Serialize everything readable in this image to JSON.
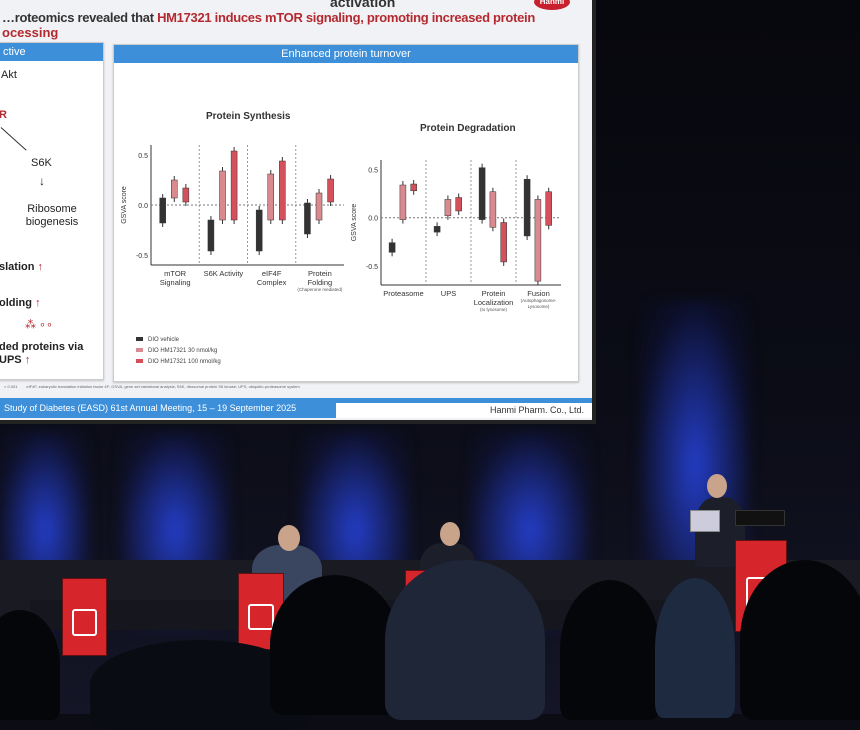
{
  "slide": {
    "title_pre": "…roteomics revealed that ",
    "title_highlight": "HM17321 induces mTOR signaling, promoting increased protein",
    "title_line2": "ocessing",
    "title_top_fragment": "activation",
    "logo": "Hanmi",
    "left_panel": {
      "header": "ctive",
      "items": [
        "Akt",
        "R",
        "S6K",
        "Ribosome biogenesis",
        "slation",
        "olding",
        "ded proteins via UPS"
      ]
    },
    "right_panel": {
      "header": "Enhanced protein turnover"
    },
    "legend": [
      {
        "label": "DIO vehicle",
        "color": "#333333"
      },
      {
        "label": "DIO HM17321 30 nmol/kg",
        "color": "#d98a8f"
      },
      {
        "label": "DIO HM17321 100 nmol/kg",
        "color": "#d4505a"
      }
    ],
    "footnote_left": "< 0.001",
    "footnote": "eIF4F, eukaryotic translation initiation factor 4F; GSVA, gene set variational analysis; S6K, ribosomal protein S6 kinase; UPS, ubiquitin-proteasome system",
    "footer_left": "Study of Diabetes (EASD) 61st Annual Meeting, 15 – 19 September 2025",
    "footer_right": "Hanmi Pharm. Co., Ltd."
  },
  "chart_data": [
    {
      "type": "box",
      "title": "Protein Synthesis",
      "ylabel": "GSVA score",
      "ylim": [
        -0.6,
        0.6
      ],
      "yticks": [
        "0.5",
        "0.0",
        "-0.5"
      ],
      "categories": [
        "mTOR Signaling",
        "S6K Activity",
        "eIF4F Complex",
        "Protein Folding"
      ],
      "category_sub": [
        "",
        "",
        "",
        "(Chaperone mediated)"
      ],
      "series": [
        {
          "name": "DIO vehicle",
          "boxes": [
            [
              -0.18,
              0.07
            ],
            [
              -0.46,
              -0.15
            ],
            [
              -0.46,
              -0.05
            ],
            [
              -0.29,
              0.02
            ]
          ]
        },
        {
          "name": "DIO HM17321 30 nmol/kg",
          "boxes": [
            [
              0.07,
              0.25
            ],
            [
              -0.15,
              0.34
            ],
            [
              -0.15,
              0.31
            ],
            [
              -0.15,
              0.12
            ]
          ]
        },
        {
          "name": "DIO HM17321 100 nmol/kg",
          "boxes": [
            [
              0.03,
              0.17
            ],
            [
              -0.15,
              0.54
            ],
            [
              -0.15,
              0.44
            ],
            [
              0.03,
              0.26
            ]
          ]
        }
      ]
    },
    {
      "type": "box",
      "title": "Protein Degradation",
      "ylabel": "GSVA score",
      "ylim": [
        -0.7,
        0.6
      ],
      "yticks": [
        "0.5",
        "0.0",
        "-0.5"
      ],
      "categories": [
        "Proteasome",
        "UPS",
        "Protein Localization",
        "Fusion"
      ],
      "category_sub": [
        "",
        "",
        "(to lysosome)",
        "(Autophagosome-Lysosome)"
      ],
      "series": [
        {
          "name": "DIO vehicle",
          "boxes": [
            [
              -0.36,
              -0.26
            ],
            [
              -0.15,
              -0.09
            ],
            [
              -0.02,
              0.52
            ],
            [
              -0.19,
              0.4
            ]
          ]
        },
        {
          "name": "DIO HM17321 30 nmol/kg",
          "boxes": [
            [
              -0.02,
              0.34
            ],
            [
              0.02,
              0.19
            ],
            [
              -0.1,
              0.27
            ],
            [
              -0.66,
              0.19
            ]
          ]
        },
        {
          "name": "DIO HM17321 100 nmol/kg",
          "boxes": [
            [
              0.28,
              0.35
            ],
            [
              0.07,
              0.21
            ],
            [
              -0.46,
              -0.05
            ],
            [
              -0.08,
              0.27
            ]
          ]
        }
      ]
    }
  ]
}
